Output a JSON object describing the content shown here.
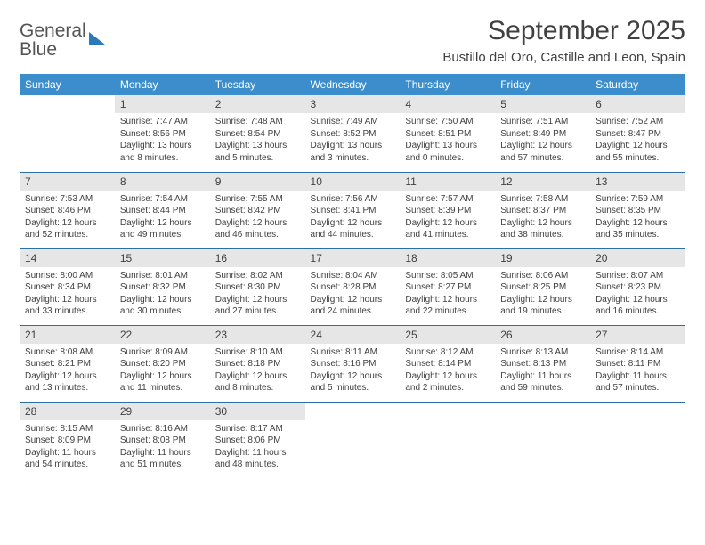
{
  "logo": {
    "line1": "General",
    "line2": "Blue"
  },
  "title": "September 2025",
  "location": "Bustillo del Oro, Castille and Leon, Spain",
  "colors": {
    "header_bg": "#3c8dcc",
    "header_text": "#ffffff",
    "daynum_bg": "#e6e6e6",
    "row_border": "#2a6fa5",
    "text": "#404040",
    "logo_blue": "#2a7ab9"
  },
  "typography": {
    "title_fontsize": 30,
    "location_fontsize": 15,
    "header_fontsize": 12,
    "daynum_fontsize": 12,
    "cell_fontsize": 10
  },
  "weekdays": [
    "Sunday",
    "Monday",
    "Tuesday",
    "Wednesday",
    "Thursday",
    "Friday",
    "Saturday"
  ],
  "weeks": [
    [
      null,
      {
        "n": "1",
        "sr": "Sunrise: 7:47 AM",
        "ss": "Sunset: 8:56 PM",
        "d1": "Daylight: 13 hours",
        "d2": "and 8 minutes."
      },
      {
        "n": "2",
        "sr": "Sunrise: 7:48 AM",
        "ss": "Sunset: 8:54 PM",
        "d1": "Daylight: 13 hours",
        "d2": "and 5 minutes."
      },
      {
        "n": "3",
        "sr": "Sunrise: 7:49 AM",
        "ss": "Sunset: 8:52 PM",
        "d1": "Daylight: 13 hours",
        "d2": "and 3 minutes."
      },
      {
        "n": "4",
        "sr": "Sunrise: 7:50 AM",
        "ss": "Sunset: 8:51 PM",
        "d1": "Daylight: 13 hours",
        "d2": "and 0 minutes."
      },
      {
        "n": "5",
        "sr": "Sunrise: 7:51 AM",
        "ss": "Sunset: 8:49 PM",
        "d1": "Daylight: 12 hours",
        "d2": "and 57 minutes."
      },
      {
        "n": "6",
        "sr": "Sunrise: 7:52 AM",
        "ss": "Sunset: 8:47 PM",
        "d1": "Daylight: 12 hours",
        "d2": "and 55 minutes."
      }
    ],
    [
      {
        "n": "7",
        "sr": "Sunrise: 7:53 AM",
        "ss": "Sunset: 8:46 PM",
        "d1": "Daylight: 12 hours",
        "d2": "and 52 minutes."
      },
      {
        "n": "8",
        "sr": "Sunrise: 7:54 AM",
        "ss": "Sunset: 8:44 PM",
        "d1": "Daylight: 12 hours",
        "d2": "and 49 minutes."
      },
      {
        "n": "9",
        "sr": "Sunrise: 7:55 AM",
        "ss": "Sunset: 8:42 PM",
        "d1": "Daylight: 12 hours",
        "d2": "and 46 minutes."
      },
      {
        "n": "10",
        "sr": "Sunrise: 7:56 AM",
        "ss": "Sunset: 8:41 PM",
        "d1": "Daylight: 12 hours",
        "d2": "and 44 minutes."
      },
      {
        "n": "11",
        "sr": "Sunrise: 7:57 AM",
        "ss": "Sunset: 8:39 PM",
        "d1": "Daylight: 12 hours",
        "d2": "and 41 minutes."
      },
      {
        "n": "12",
        "sr": "Sunrise: 7:58 AM",
        "ss": "Sunset: 8:37 PM",
        "d1": "Daylight: 12 hours",
        "d2": "and 38 minutes."
      },
      {
        "n": "13",
        "sr": "Sunrise: 7:59 AM",
        "ss": "Sunset: 8:35 PM",
        "d1": "Daylight: 12 hours",
        "d2": "and 35 minutes."
      }
    ],
    [
      {
        "n": "14",
        "sr": "Sunrise: 8:00 AM",
        "ss": "Sunset: 8:34 PM",
        "d1": "Daylight: 12 hours",
        "d2": "and 33 minutes."
      },
      {
        "n": "15",
        "sr": "Sunrise: 8:01 AM",
        "ss": "Sunset: 8:32 PM",
        "d1": "Daylight: 12 hours",
        "d2": "and 30 minutes."
      },
      {
        "n": "16",
        "sr": "Sunrise: 8:02 AM",
        "ss": "Sunset: 8:30 PM",
        "d1": "Daylight: 12 hours",
        "d2": "and 27 minutes."
      },
      {
        "n": "17",
        "sr": "Sunrise: 8:04 AM",
        "ss": "Sunset: 8:28 PM",
        "d1": "Daylight: 12 hours",
        "d2": "and 24 minutes."
      },
      {
        "n": "18",
        "sr": "Sunrise: 8:05 AM",
        "ss": "Sunset: 8:27 PM",
        "d1": "Daylight: 12 hours",
        "d2": "and 22 minutes."
      },
      {
        "n": "19",
        "sr": "Sunrise: 8:06 AM",
        "ss": "Sunset: 8:25 PM",
        "d1": "Daylight: 12 hours",
        "d2": "and 19 minutes."
      },
      {
        "n": "20",
        "sr": "Sunrise: 8:07 AM",
        "ss": "Sunset: 8:23 PM",
        "d1": "Daylight: 12 hours",
        "d2": "and 16 minutes."
      }
    ],
    [
      {
        "n": "21",
        "sr": "Sunrise: 8:08 AM",
        "ss": "Sunset: 8:21 PM",
        "d1": "Daylight: 12 hours",
        "d2": "and 13 minutes."
      },
      {
        "n": "22",
        "sr": "Sunrise: 8:09 AM",
        "ss": "Sunset: 8:20 PM",
        "d1": "Daylight: 12 hours",
        "d2": "and 11 minutes."
      },
      {
        "n": "23",
        "sr": "Sunrise: 8:10 AM",
        "ss": "Sunset: 8:18 PM",
        "d1": "Daylight: 12 hours",
        "d2": "and 8 minutes."
      },
      {
        "n": "24",
        "sr": "Sunrise: 8:11 AM",
        "ss": "Sunset: 8:16 PM",
        "d1": "Daylight: 12 hours",
        "d2": "and 5 minutes."
      },
      {
        "n": "25",
        "sr": "Sunrise: 8:12 AM",
        "ss": "Sunset: 8:14 PM",
        "d1": "Daylight: 12 hours",
        "d2": "and 2 minutes."
      },
      {
        "n": "26",
        "sr": "Sunrise: 8:13 AM",
        "ss": "Sunset: 8:13 PM",
        "d1": "Daylight: 11 hours",
        "d2": "and 59 minutes."
      },
      {
        "n": "27",
        "sr": "Sunrise: 8:14 AM",
        "ss": "Sunset: 8:11 PM",
        "d1": "Daylight: 11 hours",
        "d2": "and 57 minutes."
      }
    ],
    [
      {
        "n": "28",
        "sr": "Sunrise: 8:15 AM",
        "ss": "Sunset: 8:09 PM",
        "d1": "Daylight: 11 hours",
        "d2": "and 54 minutes."
      },
      {
        "n": "29",
        "sr": "Sunrise: 8:16 AM",
        "ss": "Sunset: 8:08 PM",
        "d1": "Daylight: 11 hours",
        "d2": "and 51 minutes."
      },
      {
        "n": "30",
        "sr": "Sunrise: 8:17 AM",
        "ss": "Sunset: 8:06 PM",
        "d1": "Daylight: 11 hours",
        "d2": "and 48 minutes."
      },
      null,
      null,
      null,
      null
    ]
  ]
}
